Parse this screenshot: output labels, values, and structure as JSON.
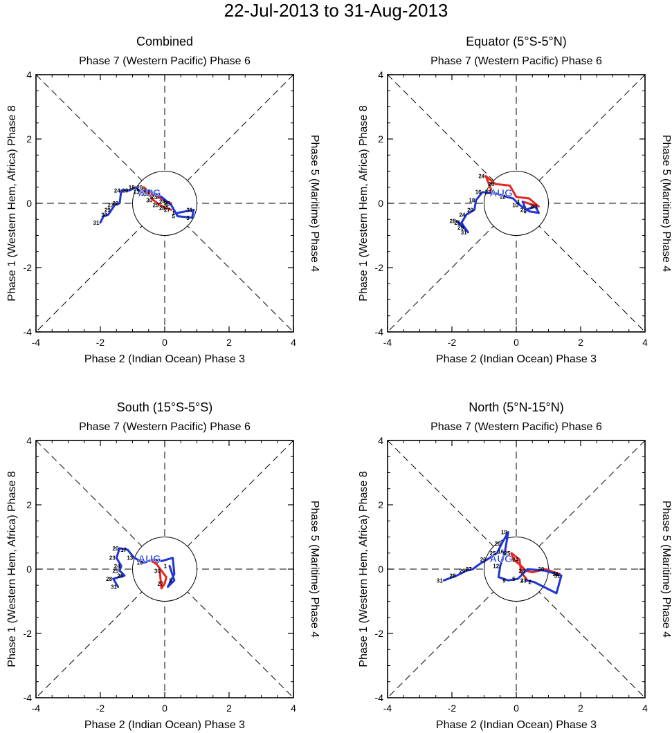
{
  "title": "22-Jul-2013 to 31-Aug-2013",
  "colors": {
    "july": "#e8251f",
    "august": "#1f35d6",
    "axes": "#000000"
  },
  "chart_data": [
    {
      "type": "line",
      "panel_title": "Combined",
      "top_label": "Phase 7 (Western Pacific) Phase 6",
      "bottom_label": "Phase 2 (Indian Ocean) Phase 3",
      "left_label": "Phase 1 (Western Hem, Africa) Phase 8",
      "right_label": "Phase 5 (Maritime) Phase 4",
      "xlim": [
        -4,
        4
      ],
      "ylim": [
        -4,
        4
      ],
      "x_ticks": [
        "-4",
        "-2",
        "0",
        "2",
        "4"
      ],
      "y_ticks": [
        "-4",
        "-2",
        "0",
        "2",
        "4"
      ],
      "month_labels": [
        "AUG"
      ],
      "series": [
        {
          "name": "Jul",
          "color_key": "july",
          "x": [
            0.2,
            0.05,
            -0.15,
            -0.35,
            -0.5,
            -0.65,
            -0.45,
            -0.2,
            0.05,
            0.2
          ],
          "y": [
            -0.2,
            -0.15,
            -0.05,
            0.1,
            0.3,
            0.5,
            0.3,
            0.2,
            0.05,
            0.0
          ],
          "labels": [
            "27",
            "28",
            "29",
            "30",
            "21",
            "20",
            "22",
            "23",
            "24",
            "25"
          ]
        },
        {
          "name": "Aug",
          "color_key": "august",
          "x": [
            0.4,
            0.9,
            0.85,
            0.4,
            0.2,
            -0.1,
            -0.5,
            -0.75,
            -0.9,
            -1.1,
            -1.35,
            -1.4,
            -1.55,
            -1.65,
            -1.75,
            -1.9,
            -2.0
          ],
          "y": [
            -0.3,
            -0.2,
            -0.45,
            -0.4,
            -0.05,
            0.2,
            0.4,
            0.35,
            0.5,
            0.4,
            0.4,
            0.0,
            -0.05,
            -0.2,
            -0.35,
            -0.4,
            -0.6
          ],
          "labels": [
            "1",
            "31",
            "3",
            "5",
            "6",
            "8",
            "10",
            "13",
            "18",
            "20",
            "24",
            "22",
            "27",
            "29",
            "30",
            "",
            "31"
          ]
        }
      ]
    },
    {
      "type": "line",
      "panel_title": "Equator (5°S-5°N)",
      "top_label": "Phase 7 (Western Pacific) Phase 6",
      "bottom_label": "Phase 2 (Indian Ocean) Phase 3",
      "left_label": "Phase 1 (Western Hem, Africa) Phase 8",
      "right_label": "Phase 5 (Maritime) Phase 4",
      "xlim": [
        -4,
        4
      ],
      "ylim": [
        -4,
        4
      ],
      "x_ticks": [
        "-4",
        "-2",
        "0",
        "2",
        "4"
      ],
      "y_ticks": [
        "-4",
        "-2",
        "0",
        "2",
        "4"
      ],
      "month_labels": [
        "AUG"
      ],
      "series": [
        {
          "name": "Jul",
          "color_key": "july",
          "x": [
            -0.75,
            -0.95,
            -0.65,
            -0.2,
            0.0,
            0.4,
            0.7,
            0.2
          ],
          "y": [
            0.35,
            0.85,
            0.6,
            0.55,
            0.2,
            0.15,
            -0.1,
            0.05
          ],
          "labels": [
            "23",
            "24",
            "26",
            "",
            "",
            "",
            "31",
            ""
          ]
        },
        {
          "name": "Aug",
          "color_key": "august",
          "x": [
            0.2,
            0.3,
            0.6,
            0.7,
            0.4,
            0.1,
            -0.1,
            -0.3,
            -0.6,
            -1.05,
            -1.25,
            -1.3,
            -1.55,
            -1.7,
            -1.55,
            -1.85,
            -1.6,
            -1.5
          ],
          "y": [
            0.05,
            -0.2,
            -0.1,
            -0.3,
            -0.25,
            -0.05,
            0.15,
            0.2,
            0.3,
            0.35,
            0.1,
            -0.2,
            -0.35,
            -0.6,
            -0.85,
            -0.55,
            -0.75,
            -0.9
          ],
          "labels": [
            "1",
            "2",
            "3",
            "",
            "6",
            "10",
            "",
            "12",
            "",
            "16",
            "18",
            "20",
            "24",
            "25",
            "",
            "28",
            "29",
            "31"
          ]
        }
      ]
    },
    {
      "type": "line",
      "panel_title": "South (15°S-5°S)",
      "top_label": "Phase 7 (Western Pacific) Phase 6",
      "bottom_label": "Phase 2 (Indian Ocean) Phase 3",
      "left_label": "Phase 1 (Western Hem, Africa) Phase 8",
      "right_label": "Phase 5 (Maritime) Phase 4",
      "xlim": [
        -4,
        4
      ],
      "ylim": [
        -4,
        4
      ],
      "x_ticks": [
        "-4",
        "-2",
        "0",
        "2",
        "4"
      ],
      "y_ticks": [
        "-4",
        "-2",
        "0",
        "2",
        "4"
      ],
      "month_labels": [
        "AUG"
      ],
      "series": [
        {
          "name": "Jul",
          "color_key": "july",
          "x": [
            -0.4,
            -0.25,
            -0.1,
            0.05,
            0.0,
            -0.1,
            -0.15
          ],
          "y": [
            0.25,
            0.15,
            -0.05,
            -0.25,
            -0.45,
            -0.6,
            -0.1
          ],
          "labels": [
            "",
            "",
            "30",
            "",
            "27",
            "",
            ""
          ]
        },
        {
          "name": "Aug",
          "color_key": "august",
          "x": [
            0.15,
            0.3,
            0.1,
            0.3,
            0.25,
            -0.1,
            -0.35,
            -0.65,
            -0.95,
            -1.15,
            -1.4,
            -1.5,
            -1.35,
            -1.4,
            -1.25,
            -1.6,
            -1.45
          ],
          "y": [
            0.1,
            -0.35,
            -0.55,
            -0.15,
            0.35,
            0.25,
            0.3,
            0.2,
            0.35,
            0.6,
            0.65,
            0.35,
            0.1,
            -0.05,
            -0.2,
            -0.3,
            -0.55
          ],
          "labels": [
            "1",
            "3",
            "",
            "",
            "",
            "6",
            "",
            "10",
            "13",
            "17",
            "20",
            "23",
            "24",
            "25",
            "26",
            "28",
            "31"
          ]
        }
      ]
    },
    {
      "type": "line",
      "panel_title": "North (5°N-15°N)",
      "top_label": "Phase 7 (Western Pacific) Phase 6",
      "bottom_label": "Phase 2 (Indian Ocean) Phase 3",
      "left_label": "Phase 1 (Western Hem, Africa) Phase 8",
      "right_label": "Phase 5 (Maritime) Phase 4",
      "xlim": [
        -4,
        4
      ],
      "ylim": [
        -4,
        4
      ],
      "x_ticks": [
        "-4",
        "-2",
        "0",
        "2",
        "4"
      ],
      "y_ticks": [
        "-4",
        "-2",
        "0",
        "2",
        "4"
      ],
      "month_labels": [
        "AUG"
      ],
      "series": [
        {
          "name": "Jul",
          "color_key": "july",
          "x": [
            0.35,
            0.15,
            0.1,
            -0.15,
            -0.1,
            0.1,
            0.3,
            0.5,
            0.9,
            1.35
          ],
          "y": [
            -0.35,
            -0.1,
            0.3,
            0.5,
            0.3,
            0.15,
            -0.05,
            -0.1,
            0.0,
            -0.15
          ],
          "labels": [
            "23",
            "",
            "24",
            "25",
            "",
            "",
            "28",
            "",
            "30",
            "31"
          ]
        },
        {
          "name": "Aug",
          "color_key": "august",
          "x": [
            0.3,
            0.55,
            1.25,
            1.4,
            0.9,
            0.35,
            0.05,
            -0.25,
            -0.55,
            -0.5,
            -0.35,
            -0.25,
            -0.45,
            -0.6,
            -0.9,
            -1.15,
            -1.35,
            -1.55,
            -1.85,
            -2.25
          ],
          "y": [
            -0.35,
            -0.4,
            -0.75,
            -0.2,
            -0.05,
            0.0,
            -0.3,
            -0.35,
            -0.25,
            0.1,
            0.55,
            1.15,
            0.8,
            0.5,
            0.3,
            0.15,
            0.0,
            -0.05,
            -0.2,
            -0.35
          ],
          "labels": [
            "3",
            "2",
            "",
            "31",
            "",
            "",
            "5",
            "9",
            "",
            "12",
            "16",
            "19",
            "20",
            "25",
            "26",
            "",
            "27",
            "29",
            "28",
            "31"
          ]
        }
      ]
    }
  ]
}
